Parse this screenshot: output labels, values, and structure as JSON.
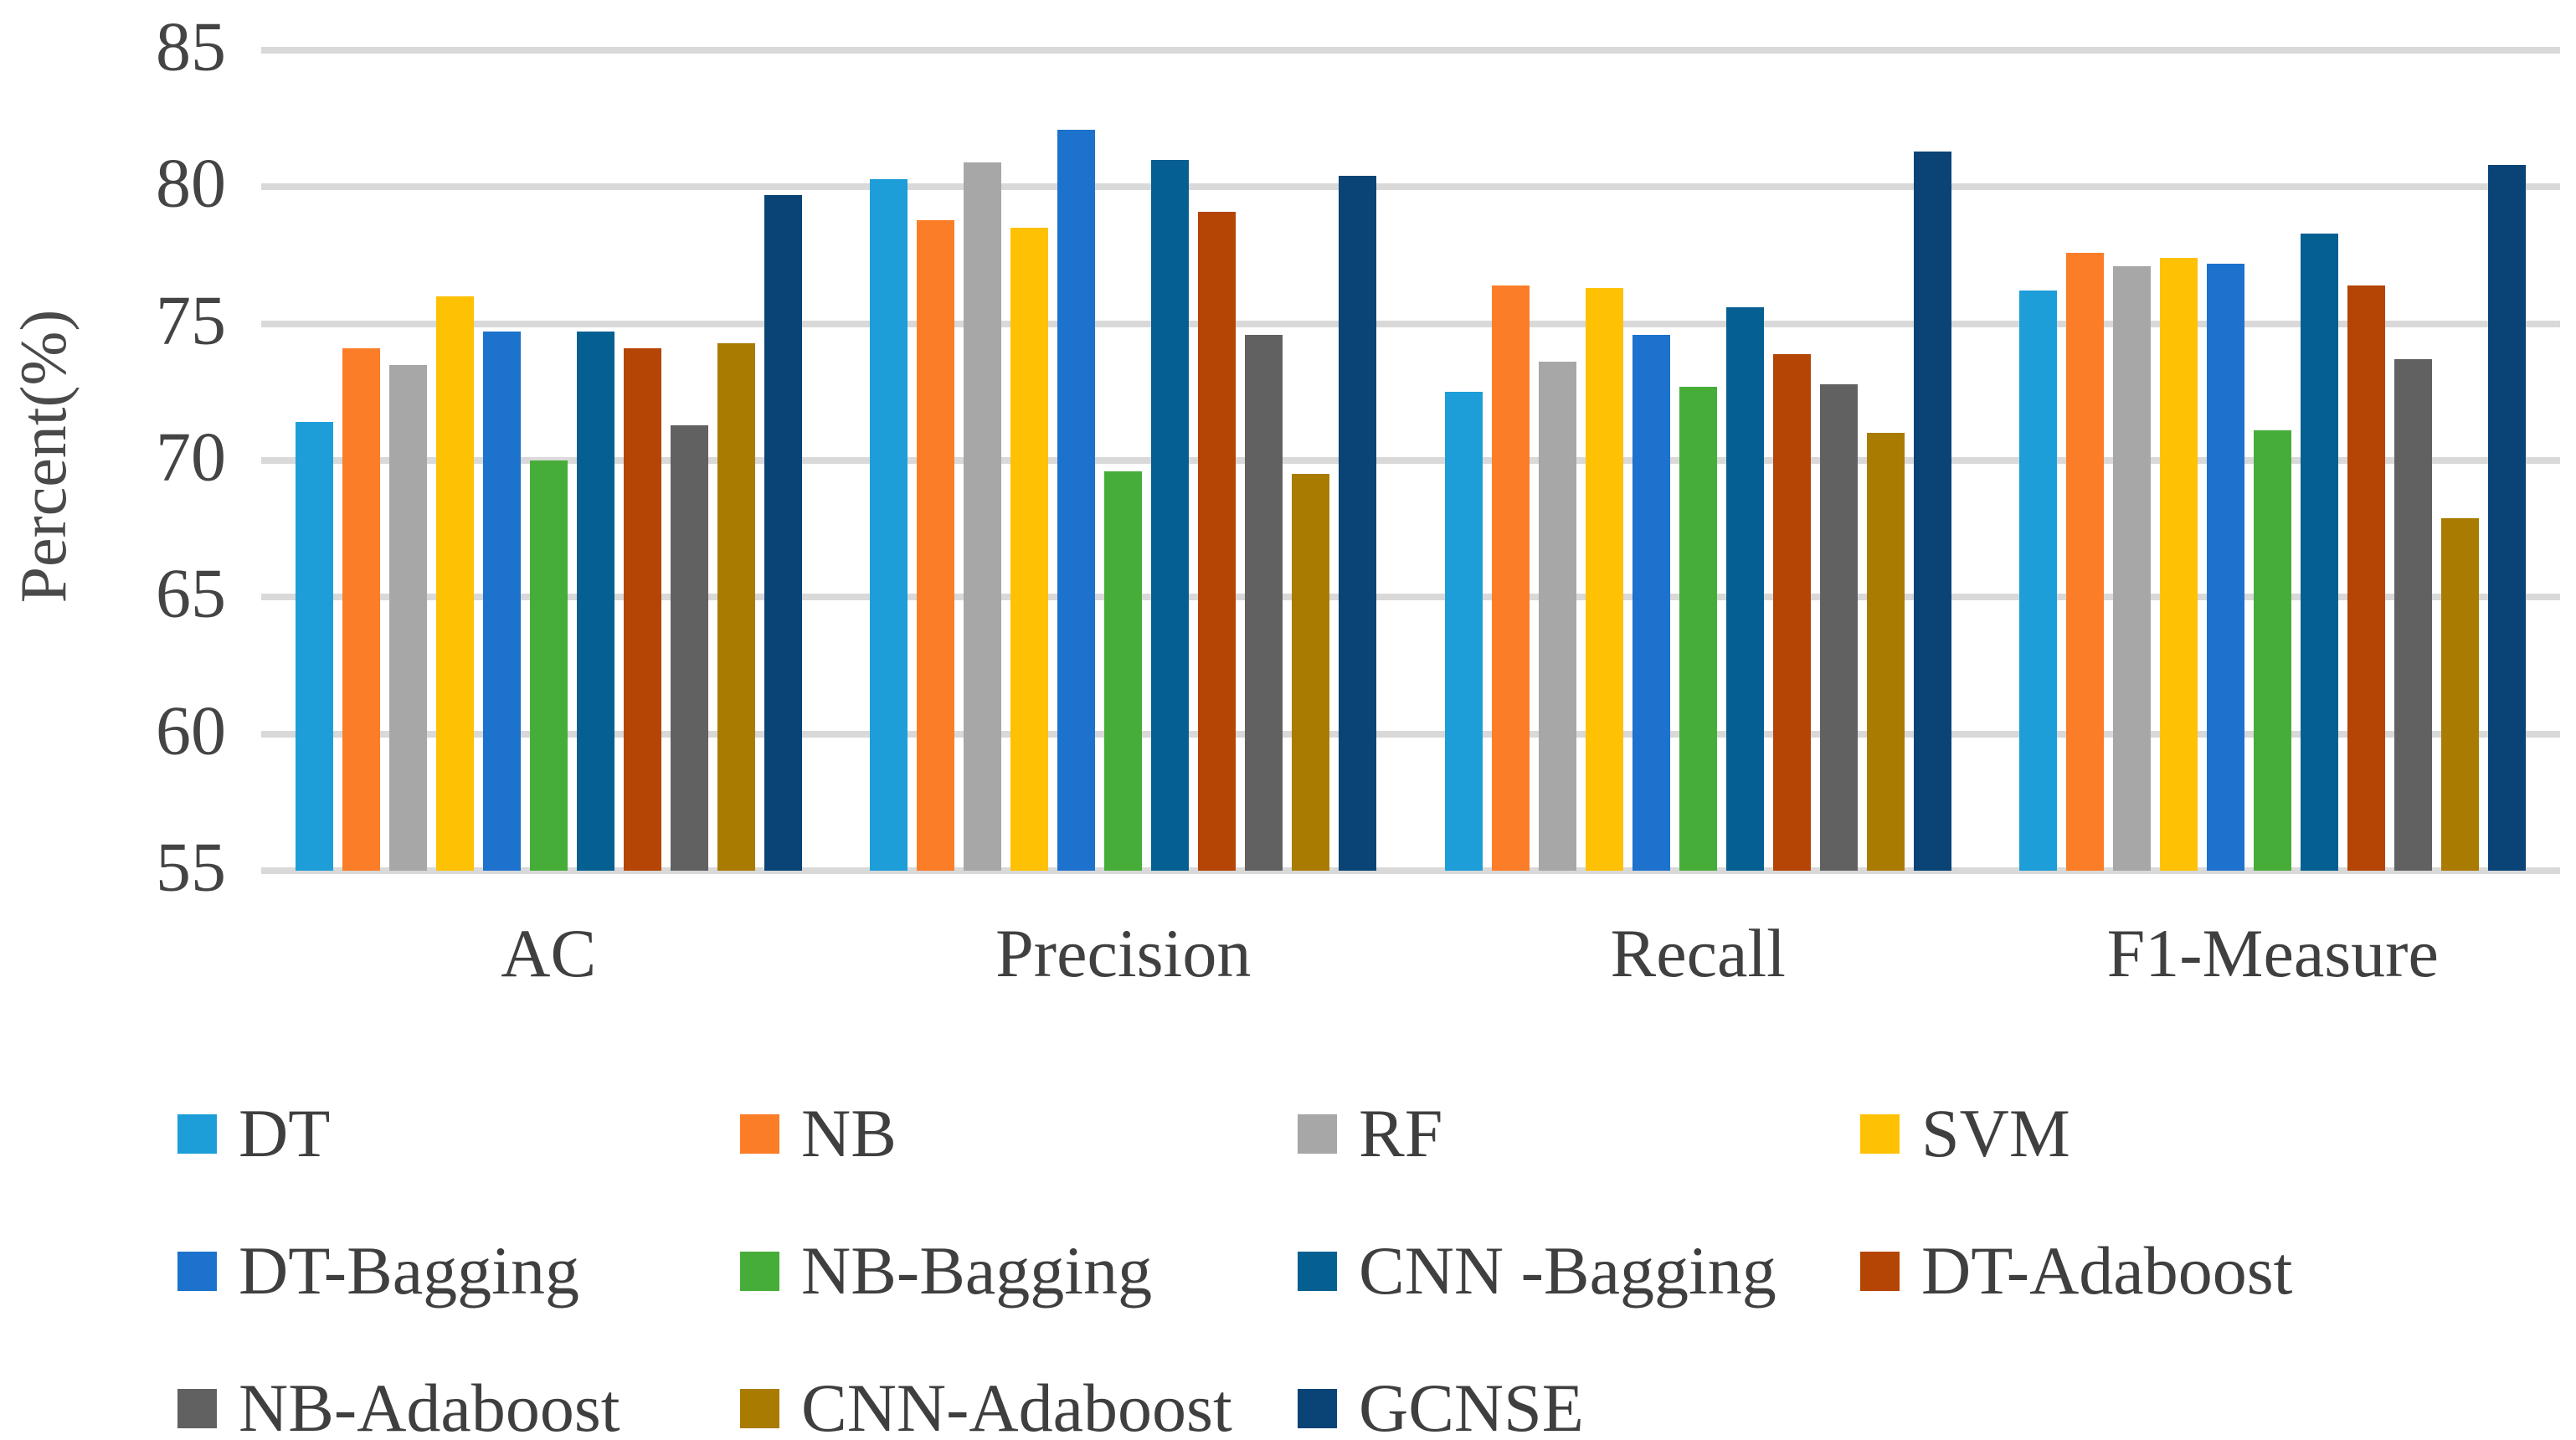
{
  "figure": {
    "background": "#ffffff",
    "gridline_color": "#d9d9d9",
    "text_color": "#3f3f3f"
  },
  "chart_data": {
    "type": "bar",
    "title": "",
    "xlabel": "",
    "ylabel": "Percent(%)",
    "ylim": [
      55,
      85
    ],
    "yticks": [
      85,
      80,
      75,
      70,
      65,
      60,
      55
    ],
    "grid": "horizontal",
    "legend_position": "bottom",
    "categories": [
      "AC",
      "Precision",
      "Recall",
      "F1-Measure"
    ],
    "series": [
      {
        "name": "DT",
        "color": "#1e9ed9",
        "values": [
          71.4,
          80.3,
          72.5,
          76.2
        ]
      },
      {
        "name": "NB",
        "color": "#fb7d28",
        "values": [
          74.1,
          78.8,
          76.4,
          77.6
        ]
      },
      {
        "name": "RF",
        "color": "#a7a7a7",
        "values": [
          73.5,
          80.9,
          73.6,
          77.1
        ]
      },
      {
        "name": "SVM",
        "color": "#fec103",
        "values": [
          76.0,
          78.5,
          76.3,
          77.4
        ]
      },
      {
        "name": "DT-Bagging",
        "color": "#1c72cc",
        "values": [
          74.7,
          82.1,
          74.6,
          77.2
        ]
      },
      {
        "name": "NB-Bagging",
        "color": "#47ad39",
        "values": [
          70.0,
          69.6,
          72.7,
          71.1
        ]
      },
      {
        "name": "CNN -Bagging",
        "color": "#056091",
        "values": [
          74.7,
          81.0,
          75.6,
          78.3
        ]
      },
      {
        "name": "DT-Adaboost",
        "color": "#b44504",
        "values": [
          74.1,
          79.1,
          73.9,
          76.4
        ]
      },
      {
        "name": "NB-Adaboost",
        "color": "#616161",
        "values": [
          71.3,
          74.6,
          72.8,
          73.7
        ]
      },
      {
        "name": "CNN-Adaboost",
        "color": "#a97b00",
        "values": [
          74.3,
          69.5,
          71.0,
          67.9
        ]
      },
      {
        "name": "GCNSE",
        "color": "#0a4376",
        "values": [
          79.7,
          80.4,
          81.3,
          80.8
        ]
      }
    ]
  }
}
